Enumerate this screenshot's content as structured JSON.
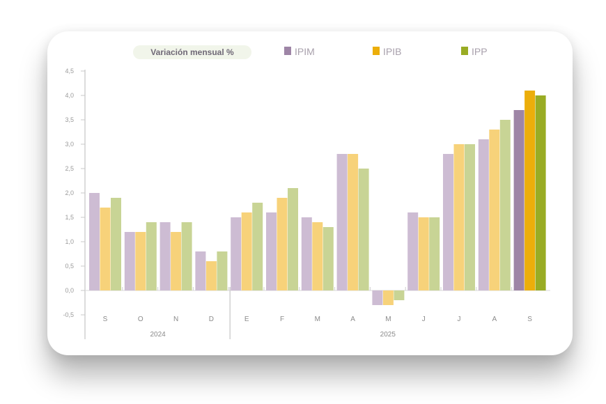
{
  "chart_data": {
    "type": "bar",
    "title": "Variación mensual %",
    "categories": [
      "S",
      "O",
      "N",
      "D",
      "E",
      "F",
      "M",
      "A",
      "M",
      "J",
      "J",
      "A",
      "S"
    ],
    "groups": [
      {
        "label": "2024",
        "months": 4
      },
      {
        "label": "2025",
        "months": 9
      }
    ],
    "series": [
      {
        "name": "IPIM",
        "color": "#9e85a6",
        "faded_color": "#cdbcd3",
        "values": [
          2.0,
          1.2,
          1.4,
          0.8,
          1.5,
          1.6,
          1.5,
          2.8,
          -0.3,
          1.6,
          2.8,
          3.1,
          3.7
        ]
      },
      {
        "name": "IPIB",
        "color": "#ecae0a",
        "faded_color": "#f7d27a",
        "values": [
          1.7,
          1.2,
          1.2,
          0.6,
          1.6,
          1.9,
          1.4,
          2.8,
          -0.3,
          1.5,
          3.0,
          3.3,
          4.1
        ]
      },
      {
        "name": "IPP",
        "color": "#99ac24",
        "faded_color": "#c8d495",
        "values": [
          1.9,
          1.4,
          1.4,
          0.8,
          1.8,
          2.1,
          1.3,
          2.5,
          -0.2,
          1.5,
          3.0,
          3.5,
          4.0
        ]
      }
    ],
    "highlighted_category_index": 12,
    "yticks": [
      "-0,5",
      "0,0",
      "0,5",
      "1,0",
      "1,5",
      "2,0",
      "2,5",
      "3,0",
      "3,5",
      "4,0",
      "4,5"
    ],
    "ylim": [
      -0.5,
      4.5
    ],
    "legend": "top",
    "grid": false
  }
}
